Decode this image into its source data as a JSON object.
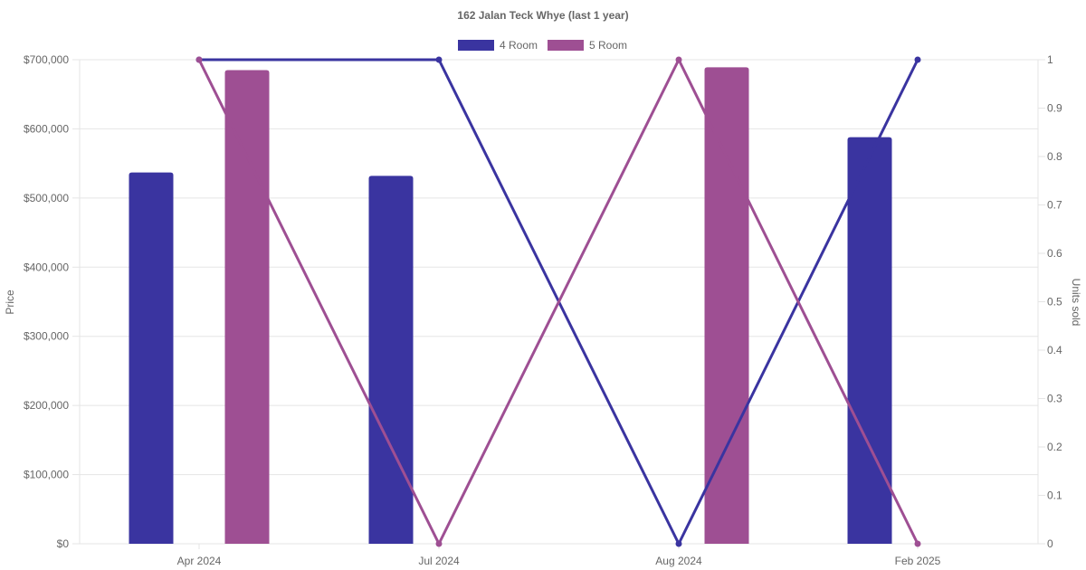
{
  "chart_data": {
    "type": "bar",
    "title": "162 Jalan Teck Whye (last 1 year)",
    "categories": [
      "Apr 2024",
      "Jul 2024",
      "Aug 2024",
      "Feb 2025"
    ],
    "y_left": {
      "label": "Price",
      "min": 0,
      "max": 700000,
      "ticks": [
        0,
        100000,
        200000,
        300000,
        400000,
        500000,
        600000,
        700000
      ],
      "tick_labels": [
        "$0",
        "$100,000",
        "$200,000",
        "$300,000",
        "$400,000",
        "$500,000",
        "$600,000",
        "$700,000"
      ]
    },
    "y_right": {
      "label": "Units sold",
      "min": 0,
      "max": 1,
      "ticks": [
        0,
        0.1,
        0.2,
        0.3,
        0.4,
        0.5,
        0.6,
        0.7,
        0.8,
        0.9,
        1
      ],
      "tick_labels": [
        "0",
        "0.1",
        "0.2",
        "0.3",
        "0.4",
        "0.5",
        "0.6",
        "0.7",
        "0.8",
        "0.9",
        "1"
      ]
    },
    "legend_position": "top-center",
    "grid": true,
    "series": [
      {
        "name": "4 Room",
        "color": "#3a34a0",
        "price": [
          537000,
          532000,
          null,
          588000
        ],
        "units_sold": [
          1,
          1,
          0,
          1
        ]
      },
      {
        "name": "5 Room",
        "color": "#9e4f93",
        "price": [
          685000,
          null,
          689000,
          null
        ],
        "units_sold": [
          1,
          0,
          1,
          0
        ]
      }
    ]
  }
}
